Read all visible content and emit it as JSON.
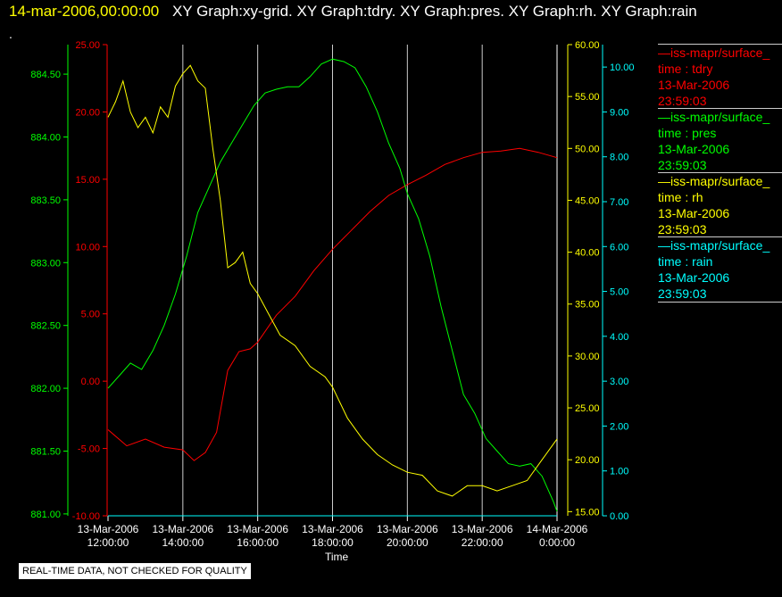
{
  "header": {
    "date": "14-mar-2006,00:00:00",
    "graphs": "XY Graph:xy-grid.  XY Graph:tdry.  XY Graph:pres.  XY Graph:rh.  XY Graph:rain"
  },
  "marker": ".",
  "footer": {
    "quality_note": "REAL-TIME DATA, NOT CHECKED FOR QUALITY"
  },
  "colors": {
    "tdry": "#ff0000",
    "pres": "#00ff00",
    "rh": "#ffff00",
    "rain": "#00ffff",
    "grid": "#cccccc"
  },
  "legend": [
    {
      "title": "—iss-mapr/surface_",
      "desc": "time : tdry",
      "date": "13-Mar-2006",
      "time": "23:59:03",
      "color": "#ff0000"
    },
    {
      "title": "—iss-mapr/surface_",
      "desc": "time : pres",
      "date": "13-Mar-2006",
      "time": "23:59:03",
      "color": "#00ff00"
    },
    {
      "title": "—iss-mapr/surface_",
      "desc": "time : rh",
      "date": "13-Mar-2006",
      "time": "23:59:03",
      "color": "#ffff00"
    },
    {
      "title": "—iss-mapr/surface_",
      "desc": "time : rain",
      "date": "13-Mar-2006",
      "time": "23:59:03",
      "color": "#00ffff"
    }
  ],
  "chart_data": {
    "type": "line",
    "xlabel": "Time",
    "x_ticks": [
      [
        "13-Mar-2006",
        "12:00:00"
      ],
      [
        "13-Mar-2006",
        "14:00:00"
      ],
      [
        "13-Mar-2006",
        "16:00:00"
      ],
      [
        "13-Mar-2006",
        "18:00:00"
      ],
      [
        "13-Mar-2006",
        "20:00:00"
      ],
      [
        "13-Mar-2006",
        "22:00:00"
      ],
      [
        "14-Mar-2006",
        "0:00:00"
      ]
    ],
    "xlim": [
      "2006-03-13 12:00",
      "2006-03-14 00:00"
    ],
    "grid": "vertical",
    "axes": {
      "tdry": {
        "ylim": [
          -10,
          25
        ],
        "ticks": [
          "25.00",
          "20.00",
          "15.00",
          "10.00",
          "5.00",
          "0.00",
          "-5.00",
          "-10.00"
        ]
      },
      "pres": {
        "ylim": [
          880.985,
          884.735
        ],
        "ticks": [
          "884.50",
          "884.00",
          "883.50",
          "883.00",
          "882.50",
          "882.00",
          "881.50",
          "881.00"
        ]
      },
      "rh": {
        "ylim": [
          14.6,
          60
        ],
        "ticks": [
          "60.00",
          "55.00",
          "50.00",
          "45.00",
          "40.00",
          "35.00",
          "30.00",
          "25.00",
          "20.00",
          "15.00"
        ]
      },
      "rain": {
        "ylim": [
          0,
          10.5
        ],
        "ticks": [
          "10.00",
          "9.00",
          "8.00",
          "7.00",
          "6.00",
          "5.00",
          "4.00",
          "3.00",
          "2.00",
          "1.00",
          "0.00"
        ]
      }
    },
    "series": [
      {
        "name": "time : tdry",
        "x": [
          12.0,
          12.5,
          13.0,
          13.5,
          14.0,
          14.3,
          14.6,
          14.9,
          15.2,
          15.5,
          15.8,
          16.0,
          16.5,
          17.0,
          17.5,
          18.0,
          18.5,
          19.0,
          19.5,
          20.0,
          20.5,
          21.0,
          21.5,
          22.0,
          22.5,
          23.0,
          23.5,
          24.0
        ],
        "values": [
          -3.6,
          -4.8,
          -4.3,
          -4.9,
          -5.1,
          -5.9,
          -5.3,
          -3.8,
          0.8,
          2.2,
          2.4,
          2.9,
          4.9,
          6.3,
          8.2,
          9.8,
          11.2,
          12.6,
          13.8,
          14.6,
          15.3,
          16.1,
          16.6,
          17.0,
          17.1,
          17.3,
          17.0,
          16.6
        ]
      },
      {
        "name": "time : pres",
        "x": [
          12.0,
          12.3,
          12.6,
          12.9,
          13.2,
          13.5,
          13.8,
          14.1,
          14.4,
          14.7,
          15.0,
          15.3,
          15.6,
          15.9,
          16.2,
          16.5,
          16.8,
          17.1,
          17.4,
          17.7,
          18.0,
          18.3,
          18.6,
          18.9,
          19.2,
          19.5,
          19.8,
          20.0,
          20.3,
          20.6,
          20.9,
          21.2,
          21.5,
          21.8,
          22.1,
          22.4,
          22.7,
          23.0,
          23.3,
          23.6,
          23.9,
          24.0
        ],
        "values": [
          882.0,
          882.1,
          882.2,
          882.15,
          882.3,
          882.5,
          882.75,
          883.05,
          883.4,
          883.6,
          883.8,
          883.95,
          884.1,
          884.25,
          884.35,
          884.38,
          884.4,
          884.4,
          884.48,
          884.58,
          884.62,
          884.6,
          884.55,
          884.4,
          884.2,
          883.95,
          883.75,
          883.55,
          883.35,
          883.05,
          882.65,
          882.3,
          881.95,
          881.8,
          881.6,
          881.5,
          881.4,
          881.38,
          881.4,
          881.3,
          881.1,
          881.02
        ]
      },
      {
        "name": "time : rh",
        "x": [
          12.0,
          12.2,
          12.4,
          12.6,
          12.8,
          13.0,
          13.2,
          13.4,
          13.6,
          13.8,
          14.0,
          14.2,
          14.4,
          14.6,
          14.8,
          15.0,
          15.2,
          15.4,
          15.6,
          15.8,
          16.0,
          16.3,
          16.6,
          17.0,
          17.4,
          17.8,
          18.0,
          18.4,
          18.8,
          19.2,
          19.6,
          20.0,
          20.4,
          20.8,
          21.2,
          21.6,
          22.0,
          22.4,
          22.8,
          23.2,
          23.6,
          23.8,
          24.0
        ],
        "values": [
          53.0,
          54.5,
          56.5,
          53.5,
          52.0,
          53.0,
          51.5,
          54.0,
          53.0,
          56.0,
          57.2,
          58.0,
          56.5,
          55.8,
          50.0,
          45.0,
          38.5,
          39.0,
          40.0,
          37.0,
          36.0,
          34.0,
          32.0,
          31.0,
          29.0,
          28.0,
          27.0,
          24.0,
          22.0,
          20.5,
          19.5,
          18.8,
          18.5,
          17.0,
          16.5,
          17.5,
          17.5,
          17.0,
          17.5,
          18.0,
          20.0,
          21.0,
          22.0
        ]
      },
      {
        "name": "time : rain",
        "x": [
          12.0,
          24.0
        ],
        "values": [
          0.0,
          0.0
        ]
      }
    ]
  }
}
